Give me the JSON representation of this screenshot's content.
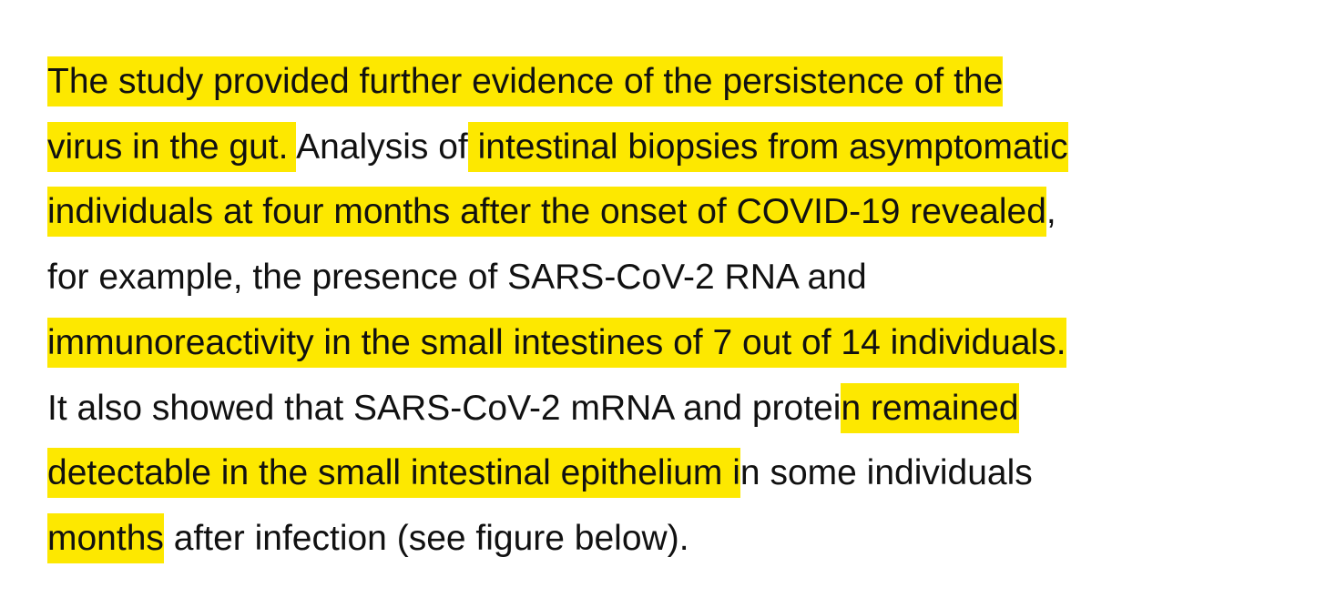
{
  "paragraph": {
    "highlight_color": "#fde800",
    "lines": [
      {
        "segments": [
          {
            "text": "The study provided further evidence of the persistence of the",
            "highlighted": true
          }
        ]
      },
      {
        "segments": [
          {
            "text": "virus in the gut. ",
            "highlighted": true
          },
          {
            "text": "Analysis of",
            "highlighted": false
          },
          {
            "text": " intestinal biopsies from asymptomatic",
            "highlighted": true
          }
        ]
      },
      {
        "segments": [
          {
            "text": "individuals at four months after the onset of COVID-19 revealed",
            "highlighted": true
          },
          {
            "text": ",",
            "highlighted": false
          }
        ]
      },
      {
        "segments": [
          {
            "text": "for example, the presence of SARS-CoV-2 RNA and",
            "highlighted": false
          }
        ]
      },
      {
        "segments": [
          {
            "text": "immunoreactivity in the small intestines of 7 out of 14 individuals.",
            "highlighted": true
          }
        ]
      },
      {
        "segments": [
          {
            "text": "It also showed that SARS-CoV-2 mRNA and protei",
            "highlighted": false
          },
          {
            "text": "n remained",
            "highlighted": true
          }
        ]
      },
      {
        "segments": [
          {
            "text": "detectable in the small intestinal epithelium i",
            "highlighted": true
          },
          {
            "text": "n some individuals",
            "highlighted": false
          }
        ]
      },
      {
        "segments": [
          {
            "text": "months",
            "highlighted": true
          },
          {
            "text": " after infection (see figure below).",
            "highlighted": false
          }
        ]
      }
    ]
  }
}
